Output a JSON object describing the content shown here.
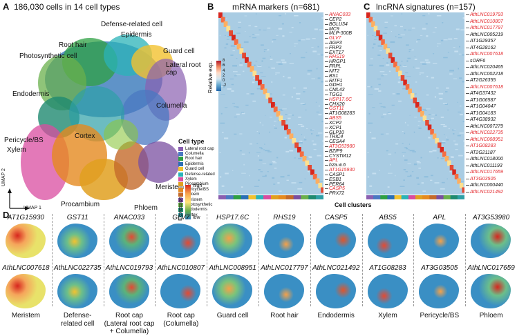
{
  "panel_a": {
    "label": "A",
    "title": "186,030 cells in 14 cell types",
    "cluster_labels": [
      {
        "text": "Root hair",
        "dot": "#2ea043"
      },
      {
        "text": "Defense-related cell",
        "dot": "#2bb3b8"
      },
      {
        "text": "Photosynthetic cell",
        "dot": "#6ab04c"
      },
      {
        "text": "Epidermis",
        "dot": "#2a6fb5"
      },
      {
        "text": "Guard cell",
        "dot": "#f2c230"
      },
      {
        "text": "Lateral root cap",
        "dot": "#8a5fb0"
      },
      {
        "text": "Endodermis",
        "dot": "#1f8a70"
      },
      {
        "text": "Columella",
        "dot": "#4a78c2"
      },
      {
        "text": "Pericycle/BS",
        "dot": "#e58a1f"
      },
      {
        "text": "Xylem",
        "dot": "#d94ca0"
      },
      {
        "text": "Cortex",
        "dot": "#2e9fa6"
      },
      {
        "text": "Meristem",
        "dot": "#7a4fa0"
      },
      {
        "text": "Procambium",
        "dot": "#e0a020"
      },
      {
        "text": "Phloem",
        "dot": "#c46a2a"
      }
    ],
    "axis_y": "UMAP 2",
    "axis_x": "UMAP 1",
    "legend": {
      "title": "Cell type",
      "items": [
        {
          "name": "Lateral root cap",
          "color": "#8a5fb0"
        },
        {
          "name": "Columella",
          "color": "#4a78c2"
        },
        {
          "name": "Root hair",
          "color": "#2ea043"
        },
        {
          "name": "Epidermis",
          "color": "#2a6fb5"
        },
        {
          "name": "Guard cell",
          "color": "#f2c230"
        },
        {
          "name": "Defense-related",
          "color": "#2bb3b8"
        },
        {
          "name": "Xylem",
          "color": "#d94ca0"
        },
        {
          "name": "Procambium",
          "color": "#e0a020"
        },
        {
          "name": "Pericycle/BS",
          "color": "#e58a1f"
        },
        {
          "name": "Phloem",
          "color": "#c46a2a"
        },
        {
          "name": "Meristem",
          "color": "#7a4fa0"
        },
        {
          "name": "Photosynthetic",
          "color": "#6ab04c"
        },
        {
          "name": "Endodermis",
          "color": "#1f8a70"
        },
        {
          "name": "Cortex",
          "color": "#2e9fa6"
        }
      ]
    },
    "expression_legend": {
      "title": "Expression",
      "high": "high",
      "low": "low"
    }
  },
  "panel_b": {
    "label": "B",
    "title": "mRNA markers (n=681)",
    "colorbar_title": "Relative exp.",
    "colorbar_ticks": [
      "8",
      "6",
      "4",
      "2",
      "0",
      "-2"
    ],
    "genes": [
      {
        "name": "ANAC033",
        "red": true
      },
      {
        "name": "CEP2",
        "red": false
      },
      {
        "name": "BGLU34",
        "red": false
      },
      {
        "name": "MC9",
        "red": false
      },
      {
        "name": "MLP-300B",
        "red": false
      },
      {
        "name": "GLV7",
        "red": true
      },
      {
        "name": "AGP3",
        "red": false
      },
      {
        "name": "FRP3",
        "red": false
      },
      {
        "name": "EXT17",
        "red": false
      },
      {
        "name": "RHS19",
        "red": true
      },
      {
        "name": "HRGP1",
        "red": false
      },
      {
        "name": "FRPL",
        "red": false
      },
      {
        "name": "NIT2",
        "red": false
      },
      {
        "name": "BS1",
        "red": false
      },
      {
        "name": "RITF1",
        "red": false
      },
      {
        "name": "GDH1",
        "red": false
      },
      {
        "name": "CML43",
        "red": false
      },
      {
        "name": "TGG1",
        "red": false
      },
      {
        "name": "HSP17.6C",
        "red": true
      },
      {
        "name": "CHX20",
        "red": false
      },
      {
        "name": "GST11",
        "red": true
      },
      {
        "name": "AT1G08283",
        "red": false
      },
      {
        "name": "ABS5",
        "red": true
      },
      {
        "name": "XCP2",
        "red": false
      },
      {
        "name": "XCP1",
        "red": false
      },
      {
        "name": "GLP10",
        "red": false
      },
      {
        "name": "TRIC4",
        "red": false
      },
      {
        "name": "CESA4",
        "red": false
      },
      {
        "name": "AT3G53980",
        "red": true
      },
      {
        "name": "BZIP9",
        "red": false
      },
      {
        "name": "CYSTM12",
        "red": false
      },
      {
        "name": "APL",
        "red": true
      },
      {
        "name": "h2a.w.6",
        "red": false
      },
      {
        "name": "AT1G15930",
        "red": true
      },
      {
        "name": "CASP1",
        "red": false
      },
      {
        "name": "ESB1",
        "red": false
      },
      {
        "name": "PER64",
        "red": false
      },
      {
        "name": "CASP5",
        "red": true
      },
      {
        "name": "PRX72",
        "red": false
      }
    ]
  },
  "panel_c": {
    "label": "C",
    "title": "lncRNA signatures (n=157)",
    "genes": [
      {
        "name": "AthLNC019793",
        "red": true
      },
      {
        "name": "AthLNC010807",
        "red": true
      },
      {
        "name": "AthLNC017797",
        "red": true
      },
      {
        "name": "AthLNC005219",
        "red": false
      },
      {
        "name": "AT1G29357",
        "red": false
      },
      {
        "name": "AT4G28162",
        "red": false
      },
      {
        "name": "AthLNC007618",
        "red": true
      },
      {
        "name": "sORF6",
        "red": false
      },
      {
        "name": "AthLNC020465",
        "red": false
      },
      {
        "name": "AthLNC002218",
        "red": false
      },
      {
        "name": "AT2G26355",
        "red": false
      },
      {
        "name": "AthLNC007618",
        "red": true
      },
      {
        "name": "AT4G37432",
        "red": false
      },
      {
        "name": "AT1G06587",
        "red": false
      },
      {
        "name": "AT1G04047",
        "red": false
      },
      {
        "name": "AT1G04183",
        "red": false
      },
      {
        "name": "AT4G38932",
        "red": false
      },
      {
        "name": "AthLNC007279",
        "red": false
      },
      {
        "name": "AthLNC022735",
        "red": true
      },
      {
        "name": "AthLNC008951",
        "red": true
      },
      {
        "name": "AT1G08283",
        "red": true
      },
      {
        "name": "AT2G21187",
        "red": false
      },
      {
        "name": "AthLNC018000",
        "red": false
      },
      {
        "name": "AthLNC011193",
        "red": false
      },
      {
        "name": "AthLNC017659",
        "red": true
      },
      {
        "name": "AT3G03505",
        "red": true
      },
      {
        "name": "AthLNC000440",
        "red": false
      },
      {
        "name": "AthLNC021492",
        "red": true
      }
    ],
    "xlabel": "Cell clusters"
  },
  "panel_d": {
    "label": "D",
    "columns": [
      {
        "top": "AT1G15930",
        "bottom": "AthLNC007618",
        "type": "Meristem"
      },
      {
        "top": "GST11",
        "bottom": "AthLNC022735",
        "type": "Defense-\nrelated cell"
      },
      {
        "top": "ANAC033",
        "bottom": "AthLNC019793",
        "type": "Root cap\n(Lateral root cap\n+ Columella)"
      },
      {
        "top": "GLV7",
        "bottom": "AthLNC010807",
        "type": "Root cap\n(Columella)"
      },
      {
        "top": "HSP17.6C",
        "bottom": "AthLNC008951",
        "type": "Guard cell"
      },
      {
        "top": "RHS19",
        "bottom": "AthLNC017797",
        "type": "Root hair"
      },
      {
        "top": "CASP5",
        "bottom": "AthLNC021492",
        "type": "Endodermis"
      },
      {
        "top": "ABS5",
        "bottom": "AT1G08283",
        "type": "Xylem"
      },
      {
        "top": "APL",
        "bottom": "AT3G03505",
        "type": "Pericycle/BS"
      },
      {
        "top": "AT3G53980",
        "bottom": "AthLNC017659",
        "type": "Phloem"
      }
    ]
  }
}
